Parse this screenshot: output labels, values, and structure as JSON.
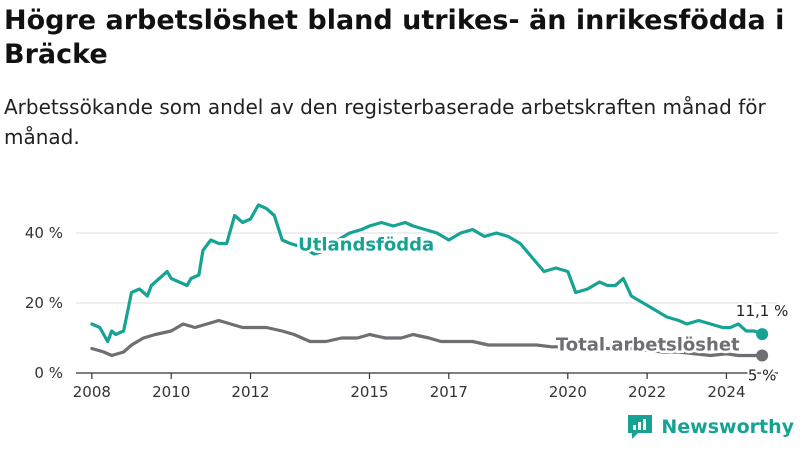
{
  "header": {
    "title": "Högre arbetslöshet bland utrikes- än inrikesfödda i Bräcke",
    "subtitle": "Arbetssökande som andel av den registerbaserade arbetskraften månad för månad."
  },
  "brand": {
    "name": "Newsworthy",
    "icon": "newsworthy-logo-icon",
    "color": "#16a394"
  },
  "chart_data": {
    "type": "line",
    "xlabel": "",
    "ylabel": "",
    "xlim": [
      2007.6,
      2025.3
    ],
    "ylim": [
      0,
      50
    ],
    "grid": true,
    "x_ticks": [
      {
        "value": 2008,
        "label": "2008"
      },
      {
        "value": 2010,
        "label": "2010"
      },
      {
        "value": 2012,
        "label": "2012"
      },
      {
        "value": 2015,
        "label": "2015"
      },
      {
        "value": 2017,
        "label": "2017"
      },
      {
        "value": 2020,
        "label": "2020"
      },
      {
        "value": 2022,
        "label": "2022"
      },
      {
        "value": 2024,
        "label": "2024"
      }
    ],
    "y_ticks": [
      {
        "value": 0,
        "label": "0 %"
      },
      {
        "value": 20,
        "label": "20 %"
      },
      {
        "value": 40,
        "label": "40 %"
      }
    ],
    "series": [
      {
        "name": "Utlandsfödda",
        "color": "#16a394",
        "end_label": "11,1 %",
        "x": [
          2008.0,
          2008.2,
          2008.4,
          2008.5,
          2008.6,
          2008.8,
          2009.0,
          2009.2,
          2009.4,
          2009.5,
          2009.7,
          2009.9,
          2010.0,
          2010.2,
          2010.4,
          2010.5,
          2010.7,
          2010.8,
          2011.0,
          2011.2,
          2011.4,
          2011.6,
          2011.8,
          2012.0,
          2012.2,
          2012.4,
          2012.6,
          2012.8,
          2013.0,
          2013.3,
          2013.6,
          2013.9,
          2014.2,
          2014.5,
          2014.8,
          2015.0,
          2015.3,
          2015.6,
          2015.9,
          2016.1,
          2016.4,
          2016.7,
          2017.0,
          2017.3,
          2017.6,
          2017.9,
          2018.2,
          2018.5,
          2018.8,
          2019.1,
          2019.4,
          2019.7,
          2020.0,
          2020.2,
          2020.5,
          2020.8,
          2021.0,
          2021.2,
          2021.4,
          2021.6,
          2021.9,
          2022.2,
          2022.5,
          2022.8,
          2023.0,
          2023.3,
          2023.6,
          2023.9,
          2024.1,
          2024.3,
          2024.5,
          2024.7,
          2024.9
        ],
        "y": [
          14,
          13,
          9,
          12,
          11,
          12,
          23,
          24,
          22,
          25,
          27,
          29,
          27,
          26,
          25,
          27,
          28,
          35,
          38,
          37,
          37,
          45,
          43,
          44,
          48,
          47,
          45,
          38,
          37,
          36,
          34,
          35,
          38,
          40,
          41,
          42,
          43,
          42,
          43,
          42,
          41,
          40,
          38,
          40,
          41,
          39,
          40,
          39,
          37,
          33,
          29,
          30,
          29,
          23,
          24,
          26,
          25,
          25,
          27,
          22,
          20,
          18,
          16,
          15,
          14,
          15,
          14,
          13,
          13,
          14,
          12,
          12,
          11.1
        ]
      },
      {
        "name": "Total arbetslöshet",
        "color": "#6e6e73",
        "end_label": "5 %",
        "x": [
          2008.0,
          2008.3,
          2008.5,
          2008.8,
          2009.0,
          2009.3,
          2009.6,
          2010.0,
          2010.3,
          2010.6,
          2010.9,
          2011.2,
          2011.5,
          2011.8,
          2012.1,
          2012.4,
          2012.8,
          2013.1,
          2013.5,
          2013.9,
          2014.3,
          2014.7,
          2015.0,
          2015.4,
          2015.8,
          2016.1,
          2016.5,
          2016.8,
          2017.2,
          2017.6,
          2018.0,
          2018.4,
          2018.8,
          2019.2,
          2019.6,
          2020.0,
          2020.4,
          2020.8,
          2021.2,
          2021.6,
          2022.0,
          2022.4,
          2022.8,
          2023.2,
          2023.6,
          2024.0,
          2024.3,
          2024.6,
          2024.9
        ],
        "y": [
          7,
          6,
          5,
          6,
          8,
          10,
          11,
          12,
          14,
          13,
          14,
          15,
          14,
          13,
          13,
          13,
          12,
          11,
          9,
          9,
          10,
          10,
          11,
          10,
          10,
          11,
          10,
          9,
          9,
          9,
          8,
          8,
          8,
          8,
          7.5,
          7.5,
          7,
          7,
          7,
          7,
          6.5,
          6,
          6,
          5.5,
          5,
          5.5,
          5,
          5,
          5
        ]
      }
    ],
    "annotations": [
      {
        "text": "Utlandsfödda",
        "series": "Utlandsfödda",
        "x": 2013.2,
        "y": 37
      },
      {
        "text": "Total arbetslöshet",
        "series": "Total arbetslöshet",
        "x": 2019.7,
        "y": 8.5
      }
    ]
  }
}
